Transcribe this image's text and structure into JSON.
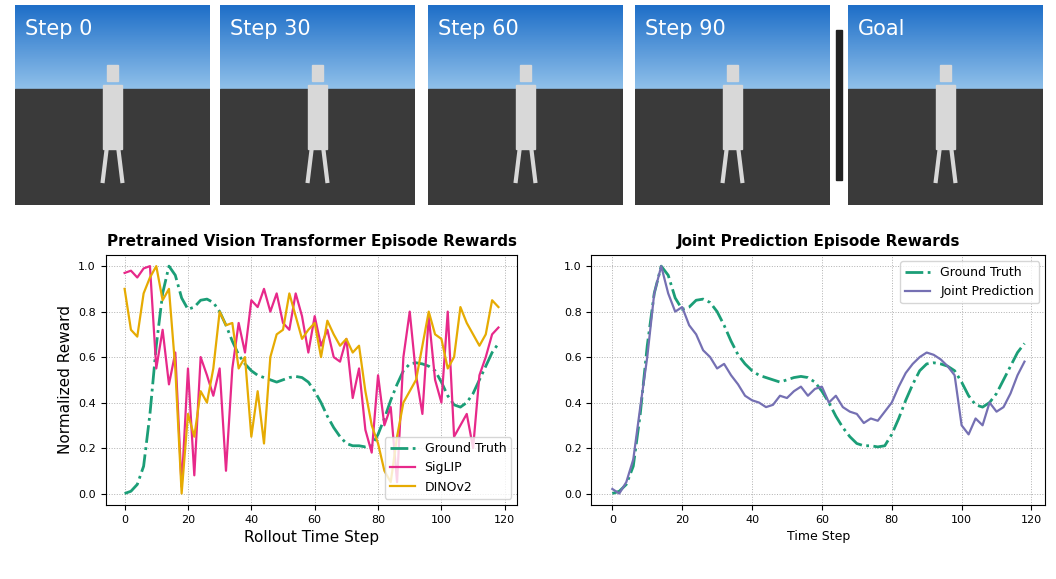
{
  "frames": [
    "Step 0",
    "Step 30",
    "Step 60",
    "Step 90",
    "Goal"
  ],
  "chart_data": [
    {
      "type": "line",
      "title": "Pretrained Vision Transformer Episode Rewards",
      "x_label": "Rollout Time Step",
      "y_label": "Normalized Reward",
      "x": [
        0,
        2,
        4,
        6,
        8,
        10,
        12,
        14,
        16,
        18,
        20,
        22,
        24,
        26,
        28,
        30,
        32,
        34,
        36,
        38,
        40,
        42,
        44,
        46,
        48,
        50,
        52,
        54,
        56,
        58,
        60,
        62,
        64,
        66,
        68,
        70,
        72,
        74,
        76,
        78,
        80,
        82,
        84,
        86,
        88,
        90,
        92,
        94,
        96,
        98,
        100,
        102,
        104,
        106,
        108,
        110,
        112,
        114,
        116,
        118
      ],
      "series": [
        {
          "name": "Ground Truth",
          "color": "#1b9e77",
          "line_style": "dashdot",
          "values": [
            0.0,
            0.01,
            0.04,
            0.12,
            0.35,
            0.65,
            0.88,
            1.0,
            0.96,
            0.86,
            0.81,
            0.82,
            0.85,
            0.855,
            0.84,
            0.8,
            0.74,
            0.67,
            0.61,
            0.57,
            0.54,
            0.52,
            0.51,
            0.5,
            0.49,
            0.5,
            0.51,
            0.515,
            0.51,
            0.49,
            0.45,
            0.4,
            0.34,
            0.29,
            0.25,
            0.22,
            0.21,
            0.21,
            0.205,
            0.21,
            0.26,
            0.33,
            0.41,
            0.48,
            0.54,
            0.57,
            0.575,
            0.57,
            0.56,
            0.54,
            0.49,
            0.43,
            0.39,
            0.38,
            0.4,
            0.44,
            0.5,
            0.56,
            0.62,
            0.66
          ]
        },
        {
          "name": "SigLIP",
          "color": "#e7298a",
          "line_style": "solid",
          "values": [
            0.97,
            0.98,
            0.95,
            0.99,
            1.0,
            0.55,
            0.72,
            0.48,
            0.62,
            0.03,
            0.55,
            0.08,
            0.6,
            0.52,
            0.43,
            0.55,
            0.1,
            0.55,
            0.75,
            0.62,
            0.85,
            0.82,
            0.9,
            0.8,
            0.88,
            0.75,
            0.72,
            0.88,
            0.78,
            0.62,
            0.78,
            0.65,
            0.72,
            0.6,
            0.58,
            0.68,
            0.42,
            0.55,
            0.28,
            0.18,
            0.52,
            0.3,
            0.38,
            0.05,
            0.6,
            0.8,
            0.52,
            0.35,
            0.78,
            0.5,
            0.4,
            0.8,
            0.25,
            0.3,
            0.35,
            0.2,
            0.52,
            0.6,
            0.7,
            0.73
          ]
        },
        {
          "name": "DINOv2",
          "color": "#e6ab02",
          "line_style": "solid",
          "values": [
            0.9,
            0.72,
            0.69,
            0.88,
            0.95,
            1.0,
            0.85,
            0.9,
            0.55,
            0.0,
            0.35,
            0.25,
            0.45,
            0.4,
            0.55,
            0.8,
            0.74,
            0.75,
            0.55,
            0.6,
            0.25,
            0.45,
            0.22,
            0.6,
            0.7,
            0.72,
            0.88,
            0.78,
            0.68,
            0.72,
            0.75,
            0.6,
            0.76,
            0.7,
            0.65,
            0.68,
            0.62,
            0.65,
            0.45,
            0.3,
            0.22,
            0.1,
            0.05,
            0.25,
            0.4,
            0.45,
            0.5,
            0.65,
            0.8,
            0.7,
            0.68,
            0.55,
            0.6,
            0.82,
            0.75,
            0.7,
            0.65,
            0.7,
            0.85,
            0.82
          ]
        }
      ],
      "xlim": [
        -6,
        124
      ],
      "ylim": [
        -0.05,
        1.05
      ],
      "xticks": [
        0,
        20,
        40,
        60,
        80,
        100,
        120
      ],
      "yticks": [
        0.0,
        0.2,
        0.4,
        0.6,
        0.8,
        1.0
      ],
      "grid": true,
      "legend": "lower right"
    },
    {
      "type": "line",
      "title": "Joint Prediction Episode Rewards",
      "x_label": "Time Step",
      "x": [
        0,
        2,
        4,
        6,
        8,
        10,
        12,
        14,
        16,
        18,
        20,
        22,
        24,
        26,
        28,
        30,
        32,
        34,
        36,
        38,
        40,
        42,
        44,
        46,
        48,
        50,
        52,
        54,
        56,
        58,
        60,
        62,
        64,
        66,
        68,
        70,
        72,
        74,
        76,
        78,
        80,
        82,
        84,
        86,
        88,
        90,
        92,
        94,
        96,
        98,
        100,
        102,
        104,
        106,
        108,
        110,
        112,
        114,
        116,
        118
      ],
      "series": [
        {
          "name": "Ground Truth",
          "color": "#1b9e77",
          "line_style": "dashdot",
          "values": [
            0.0,
            0.01,
            0.04,
            0.12,
            0.35,
            0.65,
            0.88,
            1.0,
            0.96,
            0.86,
            0.81,
            0.82,
            0.85,
            0.855,
            0.84,
            0.8,
            0.74,
            0.67,
            0.61,
            0.57,
            0.54,
            0.52,
            0.51,
            0.5,
            0.49,
            0.5,
            0.51,
            0.515,
            0.51,
            0.49,
            0.45,
            0.4,
            0.34,
            0.29,
            0.25,
            0.22,
            0.21,
            0.21,
            0.205,
            0.21,
            0.26,
            0.33,
            0.41,
            0.48,
            0.54,
            0.57,
            0.575,
            0.57,
            0.56,
            0.54,
            0.49,
            0.43,
            0.39,
            0.38,
            0.4,
            0.44,
            0.5,
            0.56,
            0.62,
            0.66
          ]
        },
        {
          "name": "Joint Prediction",
          "color": "#7570b3",
          "line_style": "solid",
          "values": [
            0.02,
            0.0,
            0.05,
            0.15,
            0.38,
            0.6,
            0.88,
            1.0,
            0.88,
            0.8,
            0.82,
            0.74,
            0.7,
            0.63,
            0.6,
            0.55,
            0.57,
            0.52,
            0.48,
            0.43,
            0.41,
            0.4,
            0.38,
            0.39,
            0.43,
            0.42,
            0.45,
            0.47,
            0.43,
            0.46,
            0.47,
            0.4,
            0.43,
            0.38,
            0.36,
            0.35,
            0.31,
            0.33,
            0.32,
            0.36,
            0.4,
            0.47,
            0.53,
            0.57,
            0.6,
            0.62,
            0.61,
            0.59,
            0.56,
            0.52,
            0.3,
            0.26,
            0.33,
            0.3,
            0.4,
            0.36,
            0.38,
            0.44,
            0.52,
            0.58
          ]
        }
      ],
      "xlim": [
        -6,
        124
      ],
      "ylim": [
        -0.05,
        1.05
      ],
      "xticks": [
        0,
        20,
        40,
        60,
        80,
        100,
        120
      ],
      "yticks": [
        0.0,
        0.2,
        0.4,
        0.6,
        0.8,
        1.0
      ],
      "grid": true,
      "legend": "upper right"
    }
  ]
}
